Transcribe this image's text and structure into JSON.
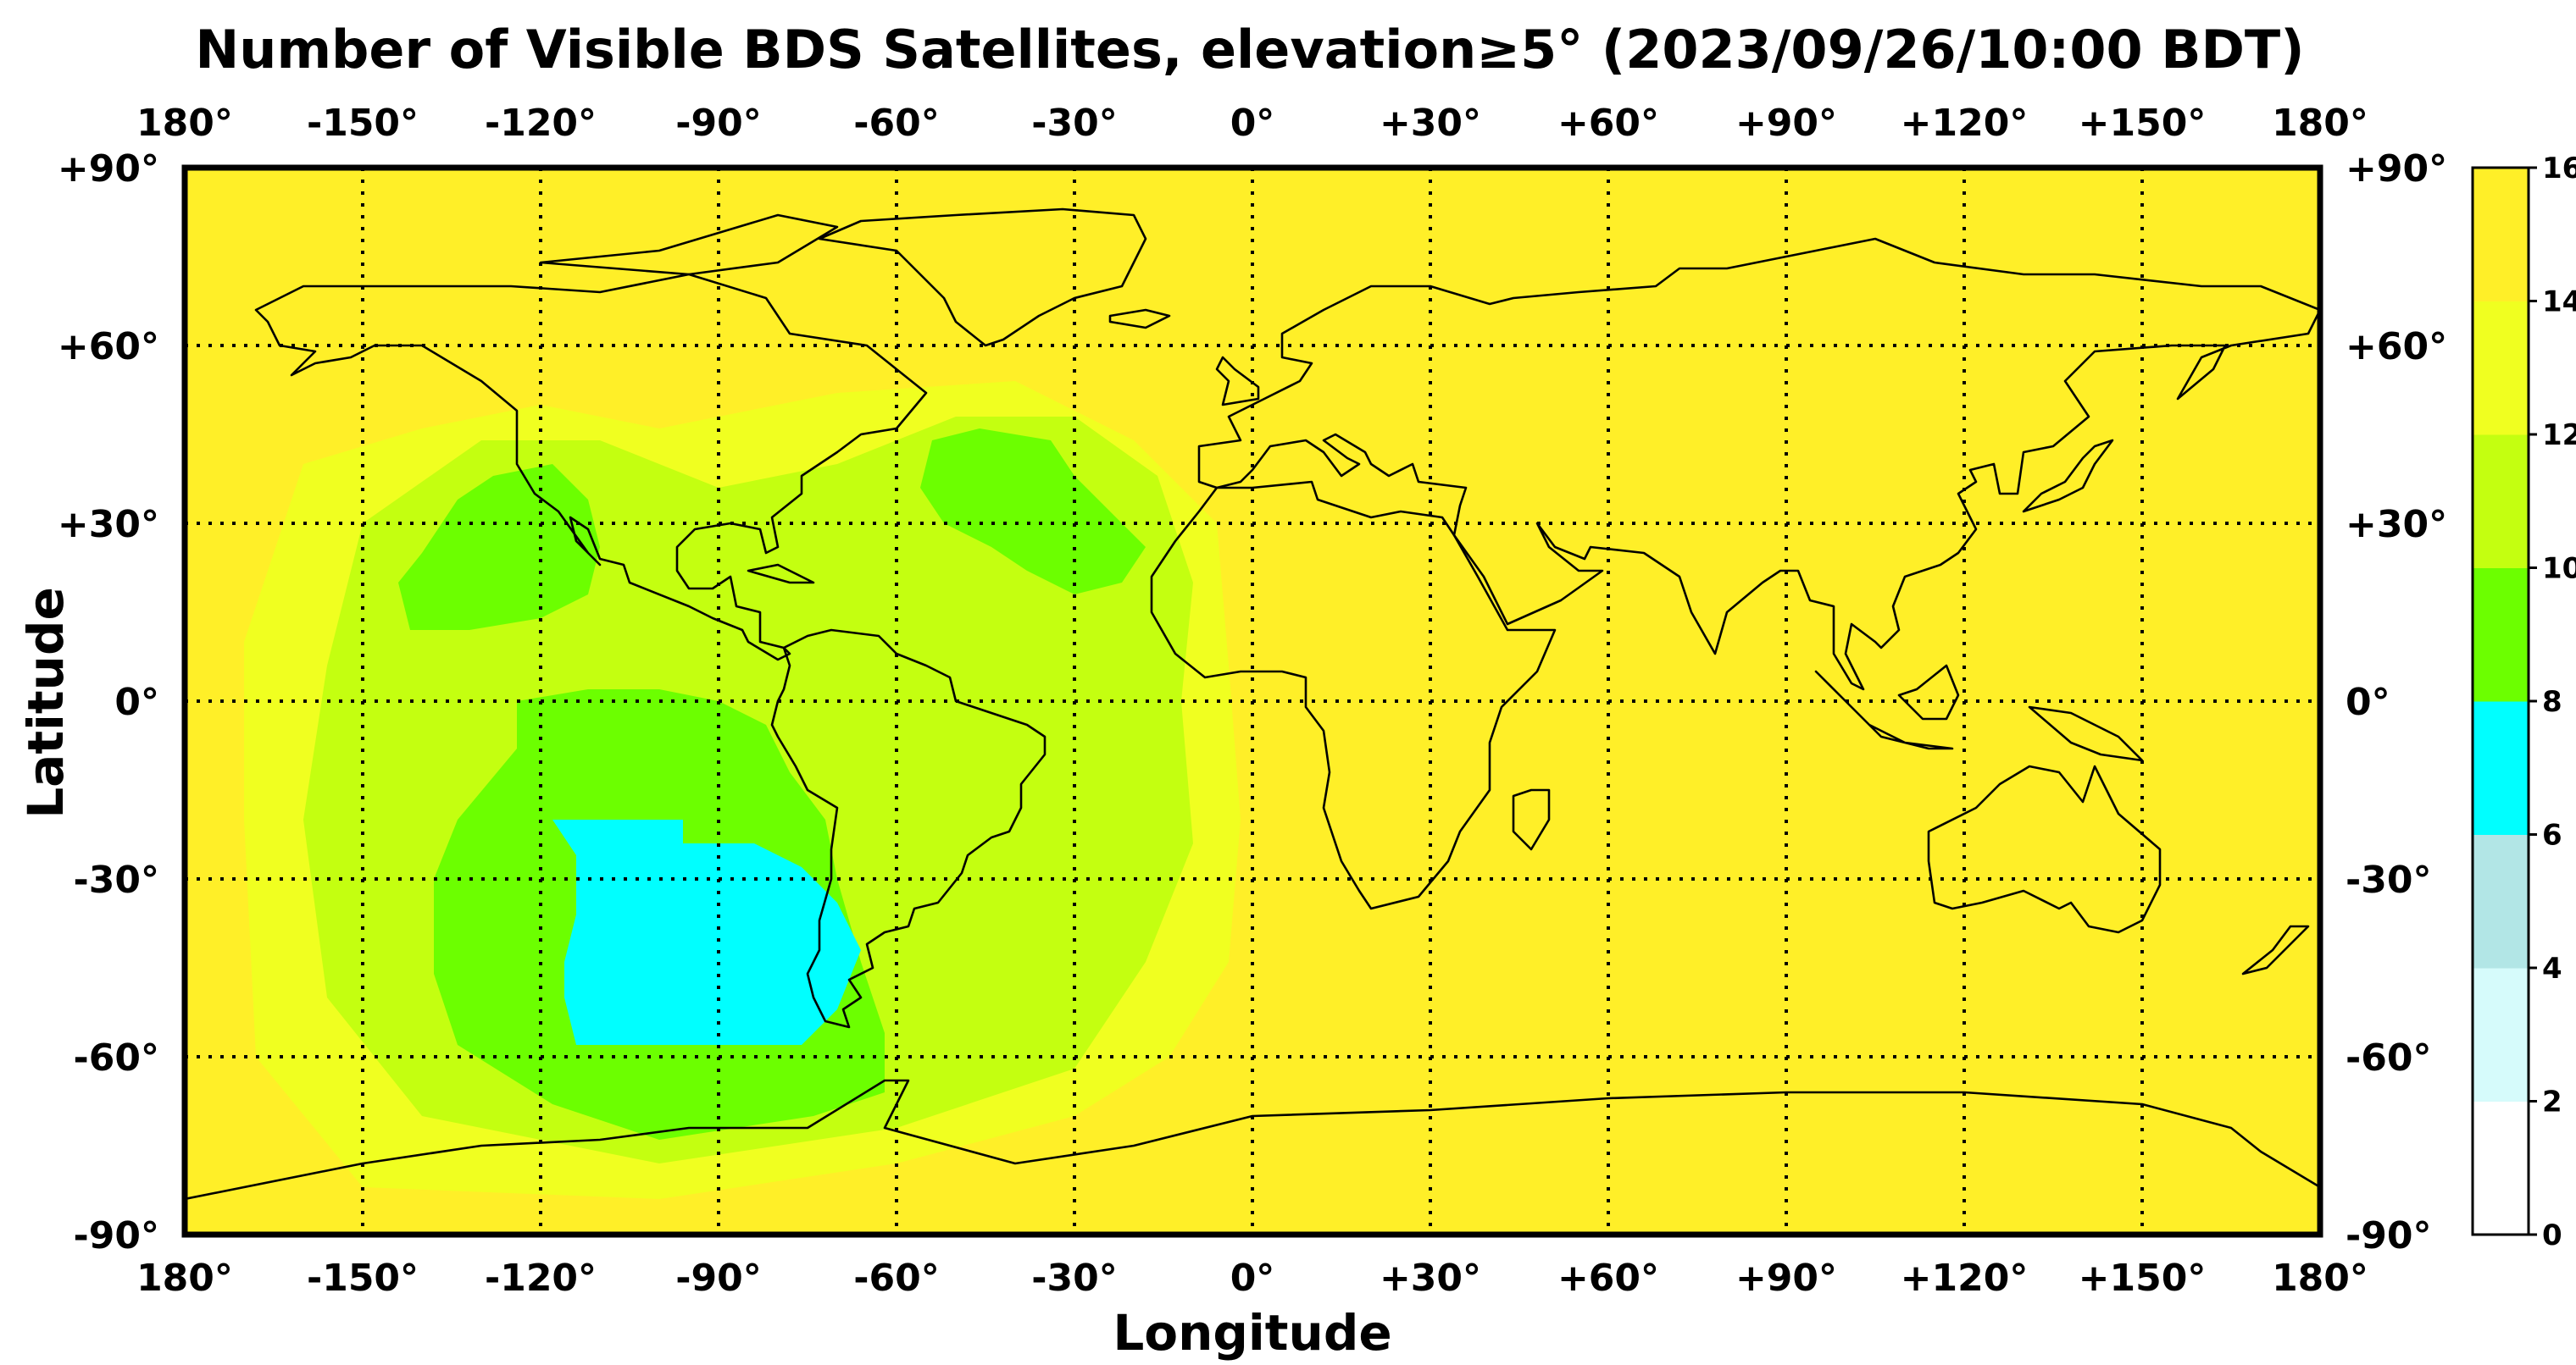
{
  "title": "Number of Visible BDS Satellites, elevation≥5° (2023/09/26/10:00 BDT)",
  "xlabel": "Longitude",
  "ylabel": "Latitude",
  "lon_ticks": [
    "180°",
    "-150°",
    "-120°",
    "-90°",
    "-60°",
    "-30°",
    "0°",
    "+30°",
    "+60°",
    "+90°",
    "+120°",
    "+150°",
    "180°"
  ],
  "lat_ticks": [
    "+90°",
    "+60°",
    "+30°",
    "0°",
    "-30°",
    "-60°",
    "-90°"
  ],
  "colorbar": {
    "ticks": [
      "0",
      "2",
      "4",
      "6",
      "8",
      "10",
      "12",
      "14",
      "16"
    ],
    "colors": [
      "#ffffff",
      "#d6fbfb",
      "#b2e6e6",
      "#00ffff",
      "#6cff00",
      "#c4ff10",
      "#f0ff20",
      "#ffef28"
    ]
  },
  "chart_data": {
    "type": "heatmap",
    "title": "Number of Visible BDS Satellites, elevation≥5° (2023/09/26/10:00 BDT)",
    "xlabel": "Longitude",
    "ylabel": "Latitude",
    "xlim": [
      -180,
      180
    ],
    "ylim": [
      -90,
      90
    ],
    "value_range": [
      0,
      16
    ],
    "grid": true,
    "colorbar_position": "right",
    "regions": [
      {
        "name": "cyan",
        "value_range": [
          6,
          8
        ],
        "points": [
          [
            -118,
            -20
          ],
          [
            -96,
            -20
          ],
          [
            -96,
            -24
          ],
          [
            -84,
            -24
          ],
          [
            -76,
            -28
          ],
          [
            -70,
            -34
          ],
          [
            -66,
            -42
          ],
          [
            -70,
            -52
          ],
          [
            -76,
            -58
          ],
          [
            -98,
            -58
          ],
          [
            -114,
            -58
          ],
          [
            -116,
            -50
          ],
          [
            -116,
            -44
          ],
          [
            -114,
            -36
          ],
          [
            -114,
            -26
          ]
        ]
      },
      {
        "name": "green-south-pacific",
        "value_range": [
          8,
          10
        ],
        "points": [
          [
            -134,
            -20
          ],
          [
            -124,
            -8
          ],
          [
            -124,
            0
          ],
          [
            -112,
            2
          ],
          [
            -100,
            2
          ],
          [
            -90,
            0
          ],
          [
            -82,
            -4
          ],
          [
            -78,
            -12
          ],
          [
            -72,
            -20
          ],
          [
            -70,
            -30
          ],
          [
            -66,
            -44
          ],
          [
            -62,
            -56
          ],
          [
            -62,
            -66
          ],
          [
            -74,
            -70
          ],
          [
            -100,
            -74
          ],
          [
            -118,
            -68
          ],
          [
            -134,
            -58
          ],
          [
            -138,
            -46
          ],
          [
            -138,
            -30
          ]
        ]
      },
      {
        "name": "green-north-pacific",
        "value_range": [
          8,
          10
        ],
        "points": [
          [
            -140,
            25
          ],
          [
            -134,
            34
          ],
          [
            -128,
            38
          ],
          [
            -118,
            40
          ],
          [
            -112,
            34
          ],
          [
            -110,
            26
          ],
          [
            -112,
            18
          ],
          [
            -120,
            14
          ],
          [
            -132,
            12
          ],
          [
            -142,
            12
          ],
          [
            -144,
            20
          ]
        ]
      },
      {
        "name": "green-north-atlantic",
        "value_range": [
          8,
          10
        ],
        "points": [
          [
            -54,
            44
          ],
          [
            -46,
            46
          ],
          [
            -34,
            44
          ],
          [
            -30,
            38
          ],
          [
            -24,
            32
          ],
          [
            -18,
            26
          ],
          [
            -22,
            20
          ],
          [
            -30,
            18
          ],
          [
            -38,
            22
          ],
          [
            -44,
            26
          ],
          [
            -52,
            30
          ],
          [
            -56,
            36
          ]
        ]
      }
    ],
    "default_value_range": [
      14,
      16
    ]
  }
}
